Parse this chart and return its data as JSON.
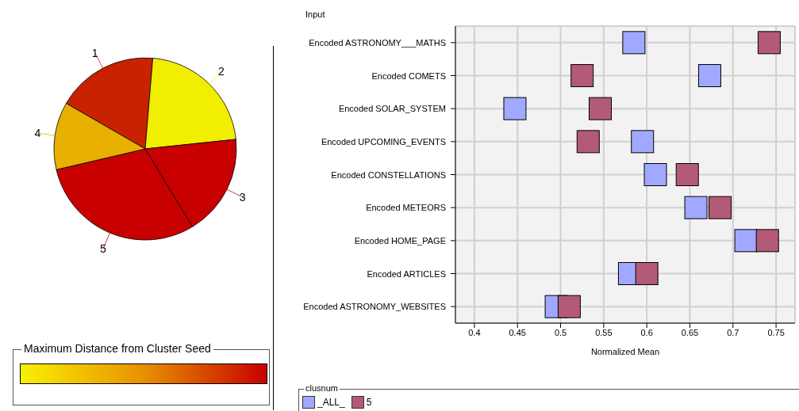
{
  "chart_data": [
    {
      "type": "pie",
      "categories": [
        "1",
        "2",
        "3",
        "5",
        "4"
      ],
      "values": [
        18,
        22,
        18,
        30,
        12
      ],
      "colors": [
        "#c82200",
        "#f2ee00",
        "#c80000",
        "#c80000",
        "#e8b000"
      ],
      "clabel": "Maximum Distance from Cluster Seed"
    },
    {
      "type": "scatter",
      "ylabel": "Input",
      "xlabel": "Normalized Mean",
      "categories": [
        "Encoded ASTRONOMY___MATHS",
        "Encoded COMETS",
        "Encoded SOLAR_SYSTEM",
        "Encoded UPCOMING_EVENTS",
        "Encoded CONSTELLATIONS",
        "Encoded METEORS",
        "Encoded HOME_PAGE",
        "Encoded ARTICLES",
        "Encoded ASTRONOMY_WEBSITES"
      ],
      "series": [
        {
          "name": "_ALL_",
          "color": "#a0a8ff",
          "values": [
            0.585,
            0.673,
            0.447,
            0.595,
            0.61,
            0.657,
            0.715,
            0.58,
            0.495
          ]
        },
        {
          "name": "5",
          "color": "#b25a78",
          "values": [
            0.742,
            0.525,
            0.546,
            0.532,
            0.647,
            0.685,
            0.74,
            0.6,
            0.51
          ]
        }
      ],
      "orientation": "horizontal",
      "xlim": [
        0.378,
        0.772
      ],
      "xticks": [
        0.4,
        0.45,
        0.5,
        0.55,
        0.6,
        0.65,
        0.7,
        0.75
      ],
      "grid": true,
      "marker": "square",
      "legend": "bottom",
      "legend_title": "clusnum"
    }
  ]
}
